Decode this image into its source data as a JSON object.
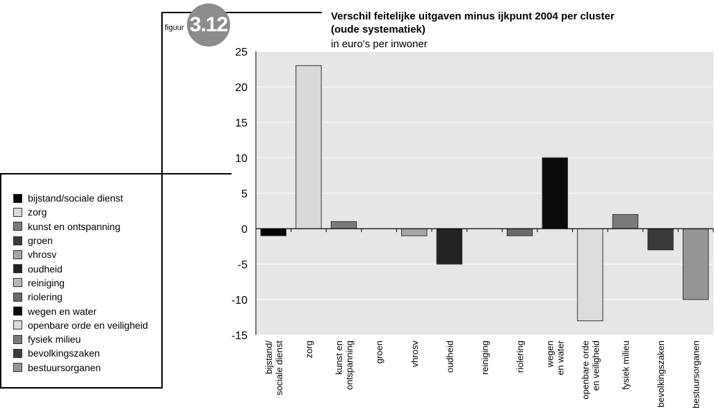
{
  "figure": {
    "word": "figuur",
    "number": "3.12"
  },
  "chart_data": {
    "type": "bar",
    "title_line1": "Verschil feitelijke uitgaven minus ijkpunt 2004 per cluster",
    "title_line2": "(oude systematiek)",
    "subtitle": "in euro's per inwoner",
    "categories": [
      [
        "bijstand/",
        "sociale dienst"
      ],
      [
        "zorg"
      ],
      [
        "kunst en",
        "ontspanning"
      ],
      [
        "groen"
      ],
      [
        "vhrosv"
      ],
      [
        "oudheid"
      ],
      [
        "reiniging"
      ],
      [
        "riolering"
      ],
      [
        "wegen",
        "en water"
      ],
      [
        "openbare orde",
        "en veiligheid"
      ],
      [
        "fysiek milieu"
      ],
      [
        "bevolkingszaken"
      ],
      [
        "bestuursorganen"
      ]
    ],
    "values": [
      -1,
      23,
      1,
      0,
      -1,
      -5,
      0,
      -1,
      10,
      -13,
      2,
      -3,
      -10
    ],
    "colors": [
      "#000000",
      "#d9d9d9",
      "#7a7a7a",
      "#3a3a3a",
      "#a6a6a6",
      "#222222",
      "#b8b8b8",
      "#6a6a6a",
      "#0a0a0a",
      "#dcdcdc",
      "#7a7a7a",
      "#3a3a3a",
      "#959595"
    ],
    "ylim": [
      -15,
      25
    ],
    "yticks": [
      25,
      20,
      15,
      10,
      5,
      0,
      -5,
      -10,
      -15
    ],
    "grid": true,
    "plot_background": "#e6e6e6",
    "legend_placement": "left"
  },
  "legend": [
    {
      "label": "bijstand/sociale dienst",
      "color": "#000000"
    },
    {
      "label": "zorg",
      "color": "#d9d9d9"
    },
    {
      "label": "kunst en ontspanning",
      "color": "#7a7a7a"
    },
    {
      "label": "groen",
      "color": "#3a3a3a"
    },
    {
      "label": "vhrosv",
      "color": "#a6a6a6"
    },
    {
      "label": "oudheid",
      "color": "#222222"
    },
    {
      "label": "reiniging",
      "color": "#b8b8b8"
    },
    {
      "label": "riolering",
      "color": "#6a6a6a"
    },
    {
      "label": "wegen en water",
      "color": "#0a0a0a"
    },
    {
      "label": "openbare orde en veiligheid",
      "color": "#dcdcdc"
    },
    {
      "label": "fysiek milieu",
      "color": "#7a7a7a"
    },
    {
      "label": "bevolkingszaken",
      "color": "#3a3a3a"
    },
    {
      "label": "bestuursorganen",
      "color": "#959595"
    }
  ]
}
